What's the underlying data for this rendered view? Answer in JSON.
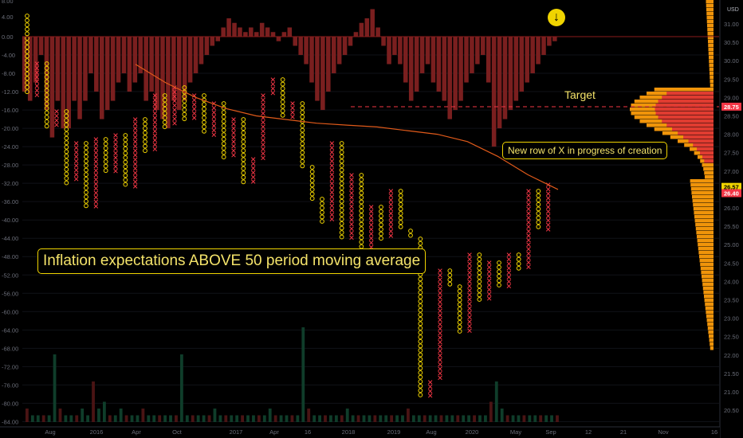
{
  "chart_data": {
    "type": "point-and-figure",
    "left_axis": {
      "ticks": [
        "0.00",
        "-4.00",
        "-8.00",
        "-12.00",
        "-16.00",
        "-20.00",
        "-24.00",
        "-28.00",
        "-32.00",
        "-36.00",
        "-40.00",
        "-44.00",
        "-48.00",
        "-52.00",
        "-56.00",
        "-60.00",
        "-64.00",
        "-68.00",
        "-72.00",
        "-76.00",
        "-80.00",
        "-84.00"
      ],
      "top_ticks": [
        "8.00",
        "4.00"
      ]
    },
    "right_axis": {
      "unit": "USD",
      "ticks": [
        "31.00",
        "30.50",
        "30.00",
        "29.50",
        "29.00",
        "28.50",
        "28.00",
        "27.50",
        "27.00",
        "26.50",
        "26.00",
        "25.50",
        "25.00",
        "24.50",
        "24.00",
        "23.50",
        "23.00",
        "22.50",
        "22.00",
        "21.50",
        "21.00",
        "20.50"
      ],
      "price_tags": [
        {
          "value": "28.75",
          "color": "#f23645"
        },
        {
          "value": "26.57",
          "color": "#f0d400"
        },
        {
          "value": "26.40",
          "color": "#f23645"
        }
      ]
    },
    "x_axis": {
      "ticks": [
        "Aug",
        "2016",
        "Apr",
        "Oct",
        "2017",
        "Apr",
        "16",
        "2018",
        "2019",
        "Aug",
        "2020",
        "May",
        "Sep",
        "12",
        "21",
        "Nov",
        "16"
      ]
    },
    "histogram_baseline": 0,
    "histogram": [
      -12,
      -14,
      -10,
      -4,
      -16,
      -22,
      -14,
      -20,
      -20,
      -14,
      -18,
      -14,
      -8,
      -12,
      -18,
      -16,
      -14,
      -10,
      -8,
      -12,
      -10,
      -8,
      -14,
      -12,
      -16,
      -18,
      -20,
      -14,
      -16,
      -14,
      -10,
      -8,
      -6,
      -4,
      -2,
      -1,
      2,
      4,
      3,
      2,
      1,
      2,
      1,
      3,
      2,
      1,
      -1,
      1,
      2,
      -2,
      -4,
      -6,
      -10,
      -14,
      -16,
      -12,
      -8,
      -6,
      -4,
      -2,
      1,
      3,
      4,
      6,
      2,
      -2,
      -6,
      -4,
      -6,
      -10,
      -14,
      -12,
      -8,
      -6,
      -10,
      -12,
      -14,
      -18,
      -16,
      -14,
      -10,
      -8,
      -6,
      -4,
      -10,
      -24,
      -20,
      -18,
      -16,
      -14,
      -12,
      -10,
      -8,
      -6,
      -4,
      -2,
      -1
    ],
    "volume": [
      2,
      1,
      1,
      1,
      1,
      10,
      2,
      1,
      1,
      1,
      2,
      1,
      6,
      2,
      3,
      1,
      1,
      2,
      1,
      1,
      1,
      2,
      1,
      1,
      1,
      1,
      1,
      1,
      10,
      1,
      1,
      1,
      1,
      1,
      2,
      1,
      1,
      1,
      1,
      1,
      1,
      1,
      1,
      1,
      2,
      1,
      1,
      1,
      1,
      1,
      14,
      2,
      1,
      1,
      1,
      1,
      1,
      1,
      2,
      1,
      1,
      1,
      1,
      1,
      1,
      1,
      1,
      1,
      1,
      2,
      1,
      1,
      1,
      1,
      1,
      1,
      1,
      1,
      1,
      1,
      1,
      1,
      1,
      1,
      3,
      6,
      2,
      1,
      1,
      1,
      1,
      1,
      1,
      1,
      1,
      1,
      1
    ],
    "moving_average_50": [
      29.9,
      29.4,
      29.0,
      28.7,
      28.5,
      28.4,
      28.3,
      28.25,
      28.2,
      28.1,
      28.0,
      27.8,
      27.4,
      26.9,
      26.5
    ],
    "target_level": 28.75,
    "current_box": 26.57
  },
  "annotations": {
    "main": "Inflation expectations ABOVE 50 period moving average",
    "progress": "New row of X in progress of creation",
    "target": "Target"
  },
  "colors": {
    "background": "#000000",
    "x_box": "#f23645",
    "o_box": "#f0d400",
    "hist_negative": "#7a1f1f",
    "volume_up": "#0f3d2a",
    "volume_down": "#4a1414",
    "moving_average": "#e05a1a",
    "profile_orange": "#f0940a",
    "profile_red": "#e03c31"
  }
}
